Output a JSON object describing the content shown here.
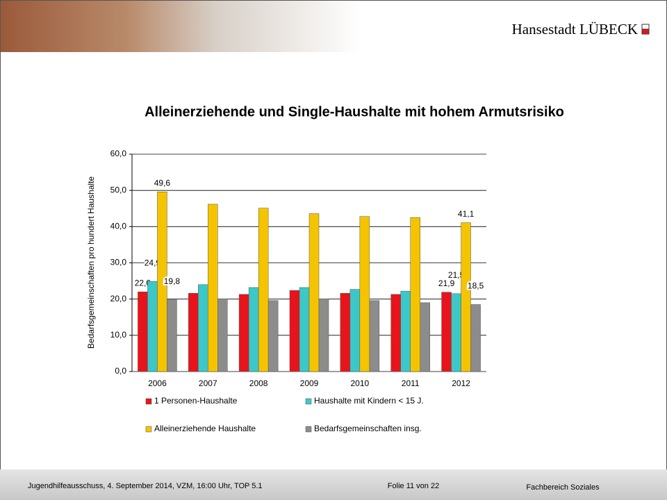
{
  "header": {
    "brand": "Hansestadt LÜBECK"
  },
  "chart_data": {
    "type": "bar",
    "title": "Alleinerziehende und Single-Haushalte mit hohem Armutsrisiko",
    "y_label": "Bedarfsgemeinschaften pro hundert Haushalte",
    "categories": [
      "2006",
      "2007",
      "2008",
      "2009",
      "2010",
      "2011",
      "2012"
    ],
    "series": [
      {
        "name": "1 Personen-Haushalte",
        "color": "#e8141b",
        "values": [
          22.0,
          21.6,
          21.3,
          22.4,
          21.6,
          21.3,
          21.9
        ],
        "value_labels": [
          "22,0",
          null,
          null,
          null,
          null,
          null,
          "21,9"
        ]
      },
      {
        "name": "Haushalte mit Kindern < 15 J.",
        "color": "#3cc8c8",
        "values": [
          24.9,
          24.0,
          23.2,
          23.2,
          22.7,
          22.2,
          21.5
        ],
        "value_labels": [
          "24,9",
          null,
          null,
          null,
          null,
          null,
          "21,5"
        ]
      },
      {
        "name": "Alleinerziehende Haushalte",
        "color": "#f5c400",
        "values": [
          49.6,
          46.2,
          45.1,
          43.6,
          42.8,
          42.5,
          41.1
        ],
        "value_labels": [
          "49,6",
          null,
          null,
          null,
          null,
          null,
          "41,1"
        ]
      },
      {
        "name": "Bedarfsgemeinschaften insg.",
        "color": "#8c8c8c",
        "values": [
          19.8,
          20.1,
          19.6,
          20.1,
          19.6,
          19.0,
          18.5
        ],
        "value_labels": [
          "19,8",
          null,
          null,
          null,
          null,
          null,
          "18,5"
        ]
      }
    ],
    "ylim": [
      0,
      60
    ],
    "yticks": [
      {
        "value": 0,
        "label": "0,0"
      },
      {
        "value": 10,
        "label": "10,0"
      },
      {
        "value": 20,
        "label": "20,0"
      },
      {
        "value": 30,
        "label": "30,0"
      },
      {
        "value": 40,
        "label": "40,0"
      },
      {
        "value": 50,
        "label": "50,0"
      },
      {
        "value": 60,
        "label": "60,0"
      }
    ],
    "grid": true
  },
  "footer": {
    "event": "Jugendhilfeausschuss, 4. September 2014, VZM, 16:00 Uhr, TOP 5.1",
    "page": "Folie 11 von 22",
    "department": "Fachbereich Soziales"
  }
}
